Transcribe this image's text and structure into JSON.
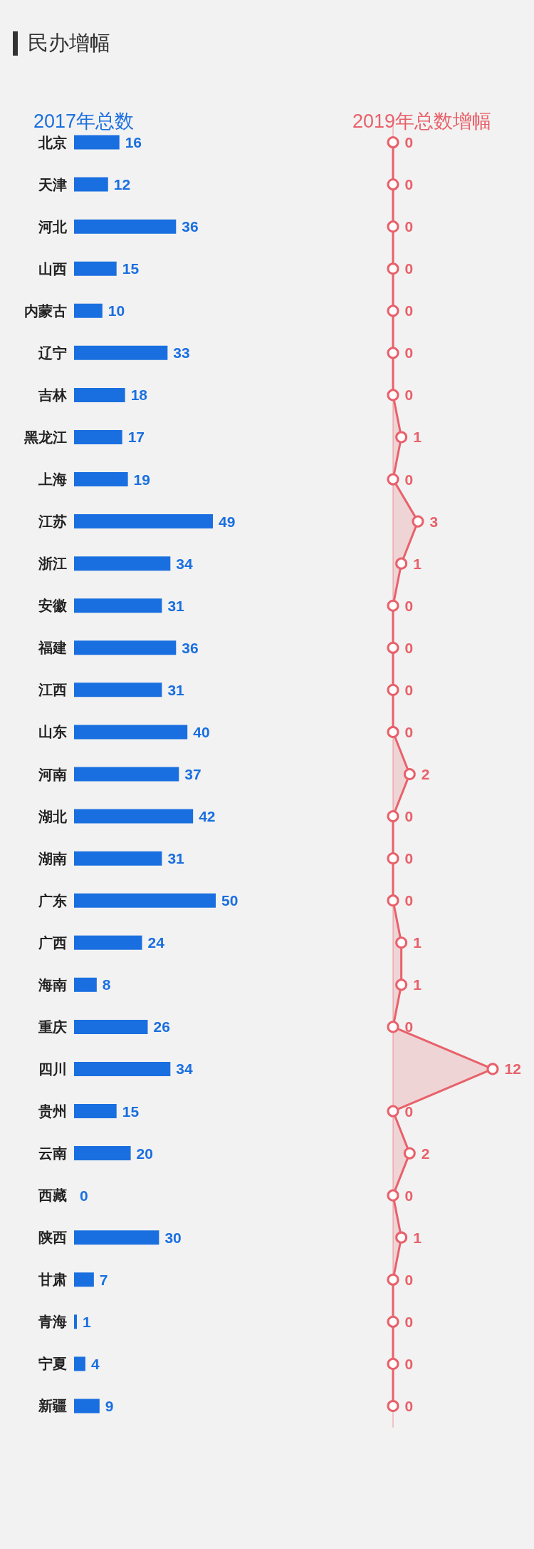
{
  "chart_data": [
    {
      "type": "bar",
      "orientation": "horizontal",
      "title": "民办增幅",
      "xlabel": "2017年总数",
      "categories": [
        "北京",
        "天津",
        "河北",
        "山西",
        "内蒙古",
        "辽宁",
        "吉林",
        "黑龙江",
        "上海",
        "江苏",
        "浙江",
        "安徽",
        "福建",
        "江西",
        "山东",
        "河南",
        "湖北",
        "湖南",
        "广东",
        "广西",
        "海南",
        "重庆",
        "四川",
        "贵州",
        "云南",
        "西藏",
        "陕西",
        "甘肃",
        "青海",
        "宁夏",
        "新疆"
      ],
      "values": [
        16,
        12,
        36,
        15,
        10,
        33,
        18,
        17,
        19,
        49,
        34,
        31,
        36,
        31,
        40,
        37,
        42,
        31,
        50,
        24,
        8,
        26,
        34,
        15,
        20,
        0,
        30,
        7,
        1,
        4,
        9
      ],
      "color": "#1a6fe0",
      "data_labels": true,
      "tick_labels": "y"
    },
    {
      "type": "area",
      "orientation": "horizontal",
      "xlabel": "2019年总数增幅",
      "categories": [
        null,
        null,
        null,
        null,
        null,
        null,
        null,
        null,
        null,
        null,
        null,
        null,
        null,
        null,
        null,
        null,
        null,
        null,
        null,
        null,
        null,
        null,
        null,
        null,
        null,
        null,
        null,
        null,
        null,
        null,
        null
      ],
      "values": [
        0,
        0,
        0,
        0,
        0,
        0,
        0,
        1,
        0,
        3,
        1,
        0,
        0,
        0,
        0,
        2,
        0,
        0,
        0,
        1,
        1,
        0,
        12,
        0,
        2,
        0,
        1,
        0,
        0,
        0,
        0
      ],
      "color": "#e8616a",
      "marker": "circle",
      "data_labels": true,
      "tick_labels": false
    }
  ]
}
